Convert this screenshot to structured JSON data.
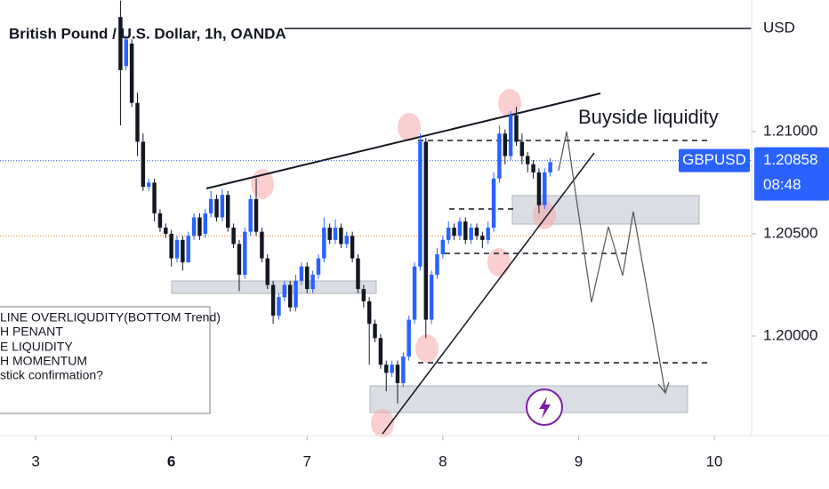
{
  "chart_data": {
    "type": "candlestick",
    "title": "British Pound / U.S. Dollar, 1h, OANDA",
    "currency": "USD",
    "symbol": "GBPUSD",
    "current_price": {
      "value": 1.20858,
      "label": "1.20858"
    },
    "countdown": "08:48",
    "reference_line": 1.2049,
    "annotations": [
      "Buyside liquidity",
      "LINE OVERLIQUDITY(BOTTOM Trend)",
      "H PENANT",
      "E LIQUIDITY",
      "H MOMENTUM",
      "stick confirmation?"
    ],
    "bull_color": "#2962ff",
    "bear_color": "#131722",
    "x": [
      15,
      16,
      17,
      18,
      19,
      20,
      21,
      22,
      23,
      24,
      25,
      26,
      27,
      28,
      29,
      30,
      31,
      32,
      33,
      34,
      35,
      36,
      37,
      38,
      39,
      40,
      41,
      42,
      43,
      44,
      45,
      46,
      47,
      48,
      49,
      50,
      51,
      52,
      53,
      54,
      55,
      56,
      57,
      58,
      59,
      60,
      61,
      62,
      63,
      64,
      65,
      66,
      67,
      68,
      69,
      70,
      71,
      72,
      73,
      74,
      75,
      76,
      77,
      78,
      79,
      80,
      81,
      82,
      83,
      84,
      85,
      86,
      87,
      88,
      89,
      90,
      91
    ],
    "open": [
      1.2156,
      1.2132,
      1.2143,
      1.2114,
      1.2095,
      1.2073,
      1.2075,
      1.206,
      1.2053,
      1.205,
      1.2038,
      1.2047,
      1.2036,
      1.2049,
      1.2058,
      1.205,
      1.206,
      1.2067,
      1.2058,
      1.2069,
      1.2053,
      1.2045,
      1.203,
      1.2051,
      1.2067,
      1.2051,
      1.2038,
      1.2025,
      1.201,
      1.2019,
      1.2025,
      1.2014,
      1.2027,
      1.2034,
      1.2023,
      1.203,
      1.2038,
      1.2053,
      1.2047,
      1.2053,
      1.2045,
      1.2049,
      1.2038,
      1.2023,
      1.2017,
      1.2006,
      1.1999,
      1.1986,
      1.1982,
      1.1986,
      1.1977,
      1.199,
      1.2008,
      1.2034,
      1.2095,
      1.2008,
      1.203,
      1.204,
      1.2047,
      1.2053,
      1.2049,
      1.2056,
      1.2047,
      1.2053,
      1.2049,
      1.2047,
      1.2053,
      1.2077,
      1.2099,
      1.2088,
      1.2108,
      1.2095,
      1.2088,
      1.2084,
      1.208,
      1.2064,
      1.208
    ],
    "high": [
      1.2164,
      1.2147,
      1.2145,
      1.2119,
      1.2099,
      1.2077,
      1.2077,
      1.2062,
      1.2055,
      1.2052,
      1.2049,
      1.2049,
      1.2051,
      1.206,
      1.206,
      1.2062,
      1.2071,
      1.2069,
      1.2072,
      1.2071,
      1.2055,
      1.2047,
      1.2053,
      1.2069,
      1.2077,
      1.2053,
      1.204,
      1.2027,
      1.2021,
      1.2027,
      1.2027,
      1.203,
      1.2036,
      1.2036,
      1.2032,
      1.204,
      1.2058,
      1.2055,
      1.2057,
      1.2055,
      1.2051,
      1.2051,
      1.204,
      1.2025,
      1.2019,
      1.2008,
      1.2001,
      1.1988,
      1.1988,
      1.1988,
      1.1992,
      1.201,
      1.2036,
      1.2099,
      1.2097,
      1.2032,
      1.2043,
      1.2049,
      1.2056,
      1.2055,
      1.2058,
      1.2058,
      1.2055,
      1.2055,
      1.2051,
      1.2056,
      1.208,
      1.2103,
      1.2101,
      1.211,
      1.2112,
      1.2099,
      1.209,
      1.2086,
      1.2082,
      1.2082,
      1.2087
    ],
    "low": [
      1.2103,
      1.213,
      1.2112,
      1.2088,
      1.2071,
      1.2071,
      1.2056,
      1.2051,
      1.2048,
      1.2034,
      1.2036,
      1.2032,
      1.2036,
      1.2047,
      1.2047,
      1.2048,
      1.2058,
      1.2056,
      1.2056,
      1.2051,
      1.2043,
      1.2022,
      1.2028,
      1.2049,
      1.2049,
      1.2036,
      1.2023,
      1.2006,
      1.2008,
      1.2017,
      1.2012,
      1.2012,
      1.2025,
      1.2021,
      1.2021,
      1.2028,
      1.2036,
      1.2045,
      1.2045,
      1.2043,
      1.2043,
      1.2036,
      1.2021,
      1.2014,
      1.1986,
      1.1997,
      1.1984,
      1.1973,
      1.198,
      1.1967,
      1.1975,
      1.1988,
      1.2006,
      1.2032,
      1.1999,
      1.2006,
      1.2028,
      1.2038,
      1.2045,
      1.2047,
      1.2047,
      1.2045,
      1.2045,
      1.2047,
      1.2043,
      1.2045,
      1.2051,
      1.2075,
      1.2084,
      1.2086,
      1.2093,
      1.2084,
      1.208,
      1.2077,
      1.206,
      1.2062,
      1.2078
    ],
    "close": [
      1.213,
      1.2145,
      1.2114,
      1.2095,
      1.2073,
      1.2075,
      1.206,
      1.2053,
      1.205,
      1.2038,
      1.2047,
      1.2036,
      1.2049,
      1.2058,
      1.2049,
      1.206,
      1.2067,
      1.2058,
      1.2069,
      1.2053,
      1.2045,
      1.203,
      1.2051,
      1.2067,
      1.2051,
      1.2038,
      1.2025,
      1.201,
      1.2019,
      1.2025,
      1.2014,
      1.2027,
      1.2034,
      1.2023,
      1.203,
      1.2038,
      1.2053,
      1.2047,
      1.2053,
      1.2045,
      1.2049,
      1.2038,
      1.2023,
      1.2017,
      1.2006,
      1.1999,
      1.1986,
      1.1982,
      1.1986,
      1.1977,
      1.199,
      1.2008,
      1.2034,
      1.2095,
      1.2008,
      1.203,
      1.204,
      1.2047,
      1.2053,
      1.2049,
      1.2056,
      1.2047,
      1.2053,
      1.2049,
      1.2047,
      1.2053,
      1.2077,
      1.2099,
      1.2088,
      1.2108,
      1.2095,
      1.2088,
      1.2084,
      1.208,
      1.2064,
      1.208,
      1.2085
    ],
    "xlim": [
      -6.3,
      126.6
    ],
    "xticks": [
      {
        "value": 0,
        "label": "3"
      },
      {
        "value": 24,
        "label": "6"
      },
      {
        "value": 48,
        "label": "7"
      },
      {
        "value": 72,
        "label": "8"
      },
      {
        "value": 96,
        "label": "9"
      },
      {
        "value": 120,
        "label": "10"
      }
    ],
    "ylim": [
      1.19513,
      1.21643
    ],
    "yticks": [
      {
        "value": 1.21,
        "label": "1.21000"
      },
      {
        "value": 1.205,
        "label": "1.20500"
      },
      {
        "value": 1.2,
        "label": "1.20000"
      }
    ],
    "grid": false
  }
}
